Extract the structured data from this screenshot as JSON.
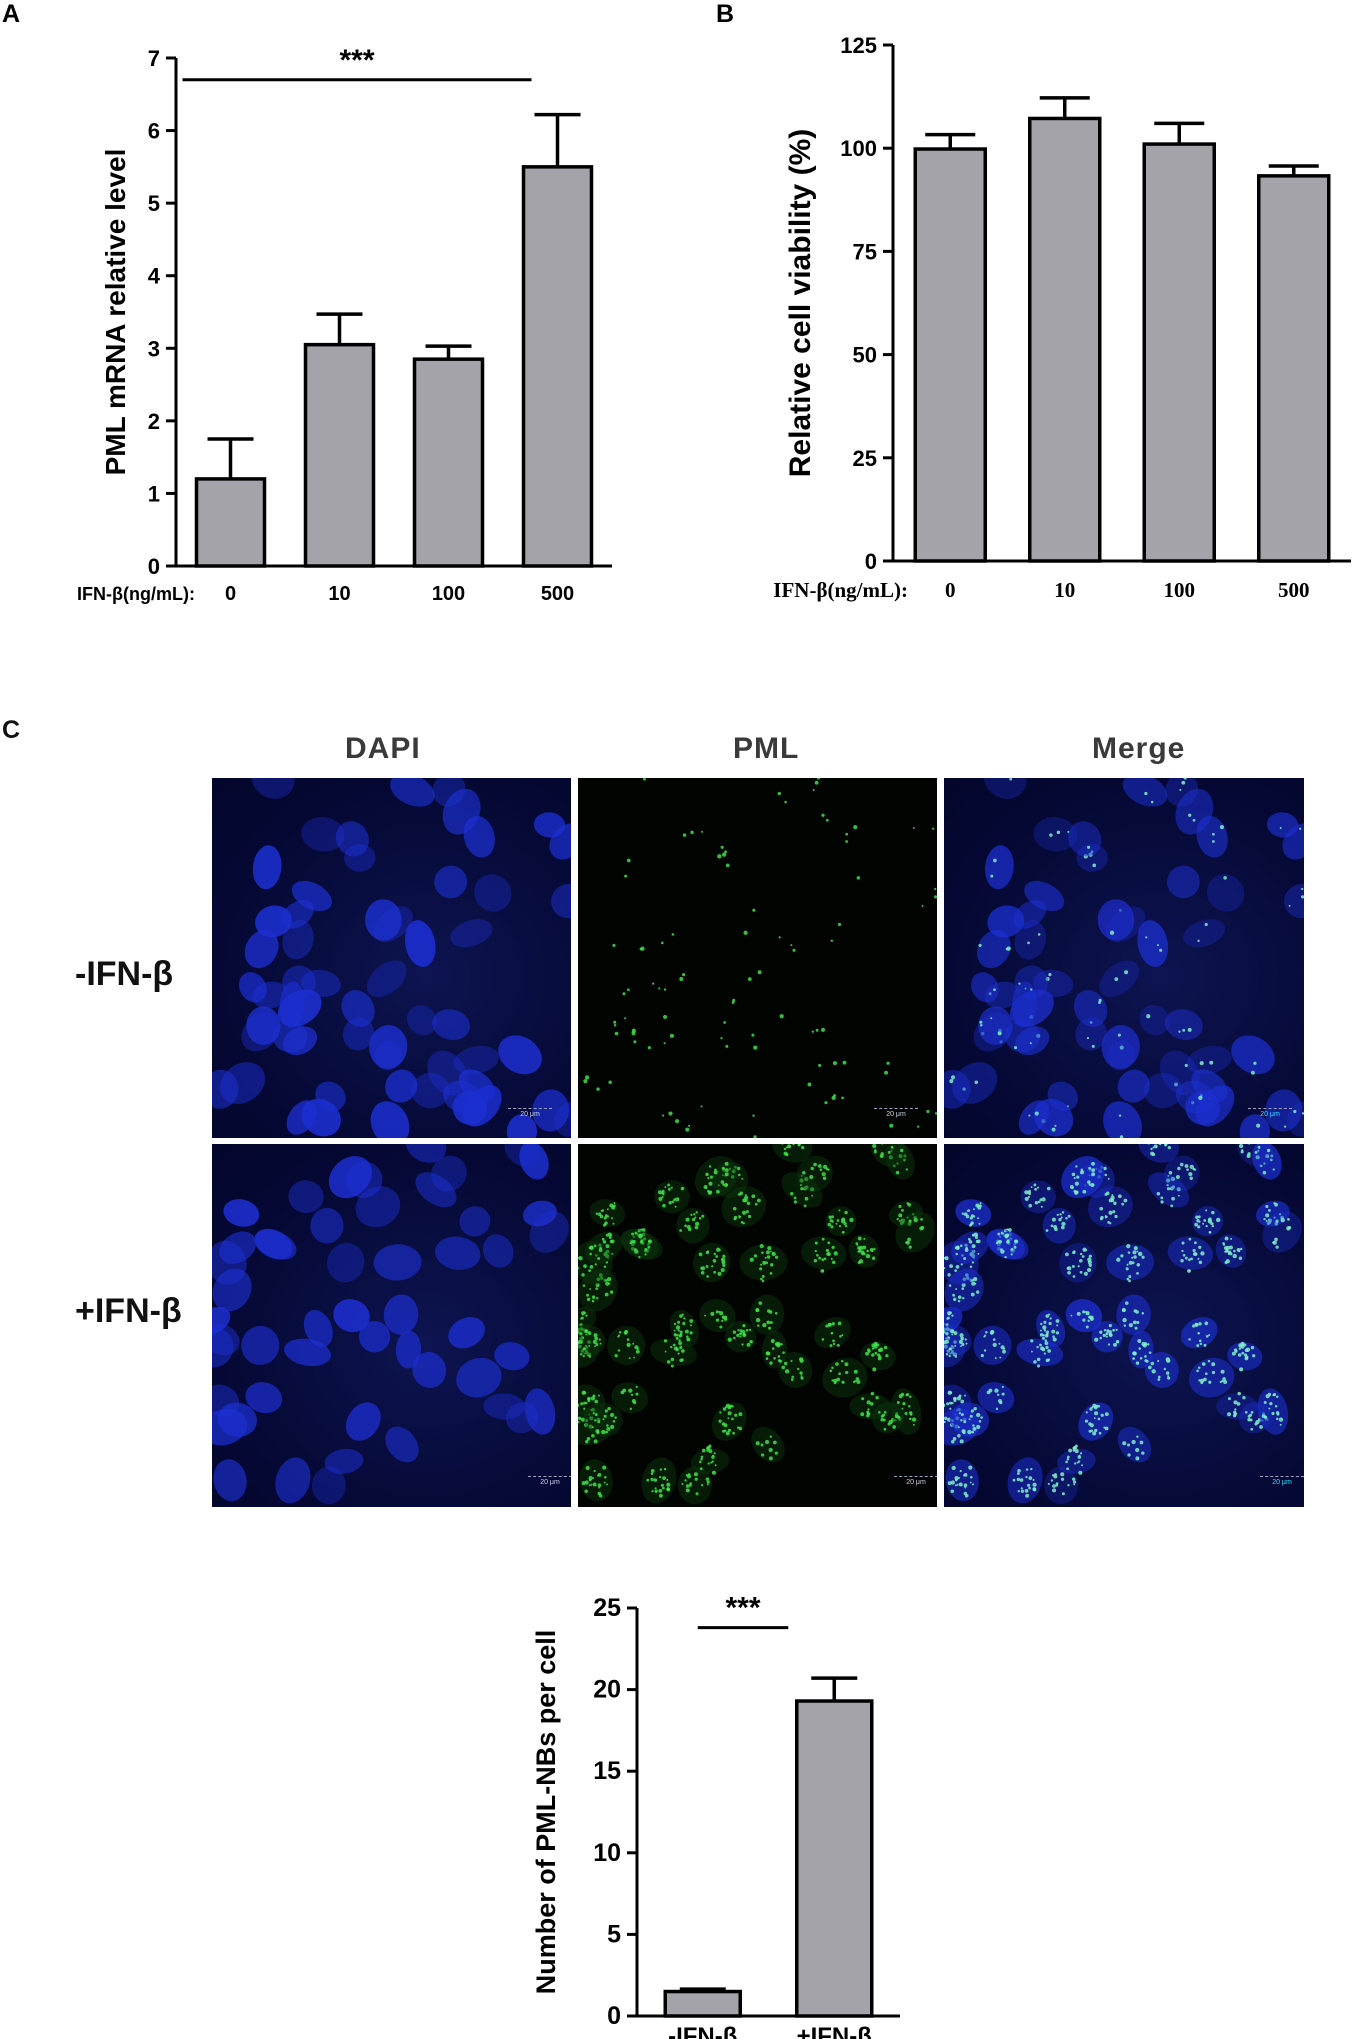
{
  "panel_labels": {
    "a": "A",
    "b": "B",
    "c": "C"
  },
  "colors": {
    "bar_fill": "#a3a3a9",
    "bar_stroke": "#000000",
    "nucleus": "#1c2fd0",
    "pml_dot": "#3fe04a",
    "scale_bar_text_merge": "#33e0ff"
  },
  "chart_data": [
    {
      "id": "A",
      "type": "bar",
      "ylabel": "PML mRNA relative level",
      "xlabel_prefix": "IFN-β(ng/mL):",
      "categories": [
        "0",
        "10",
        "100",
        "500"
      ],
      "values": [
        1.2,
        3.05,
        2.85,
        5.5
      ],
      "errors": [
        0.55,
        0.42,
        0.18,
        0.72
      ],
      "ylim": [
        0,
        7
      ],
      "yticks": [
        "0",
        "1",
        "2",
        "3",
        "4",
        "5",
        "6",
        "7"
      ],
      "significance": {
        "label": "***",
        "from": 0,
        "to": 3,
        "y": 6.7
      }
    },
    {
      "id": "B",
      "type": "bar",
      "ylabel": "Relative cell viability (%)",
      "xlabel_prefix": "IFN-β(ng/mL):",
      "categories": [
        "0",
        "10",
        "100",
        "500"
      ],
      "values": [
        99.8,
        107.2,
        101.0,
        93.3
      ],
      "errors": [
        3.5,
        5.0,
        5.0,
        2.4
      ],
      "ylim": [
        0,
        125
      ],
      "yticks": [
        "0",
        "25",
        "50",
        "75",
        "100",
        "125"
      ]
    },
    {
      "id": "C",
      "type": "bar",
      "ylabel": "Number of PML-NBs per cell",
      "categories": [
        "-IFN-β",
        "+IFN-β"
      ],
      "values": [
        1.5,
        19.3
      ],
      "errors": [
        0.15,
        1.4
      ],
      "ylim": [
        0,
        25
      ],
      "yticks": [
        "0",
        "5",
        "10",
        "15",
        "20",
        "25"
      ],
      "significance": {
        "label": "***",
        "from": 0,
        "to": 1,
        "y": 23.8
      }
    }
  ],
  "micrograph": {
    "columns": [
      "DAPI",
      "PML",
      "Merge"
    ],
    "rows": [
      "-IFN-β",
      "+IFN-β"
    ],
    "scale_bar_label": "20 μm",
    "channels": [
      "dapi",
      "pml",
      "merge"
    ],
    "pml_density": {
      "minus": 0.25,
      "plus": 1.0
    }
  }
}
